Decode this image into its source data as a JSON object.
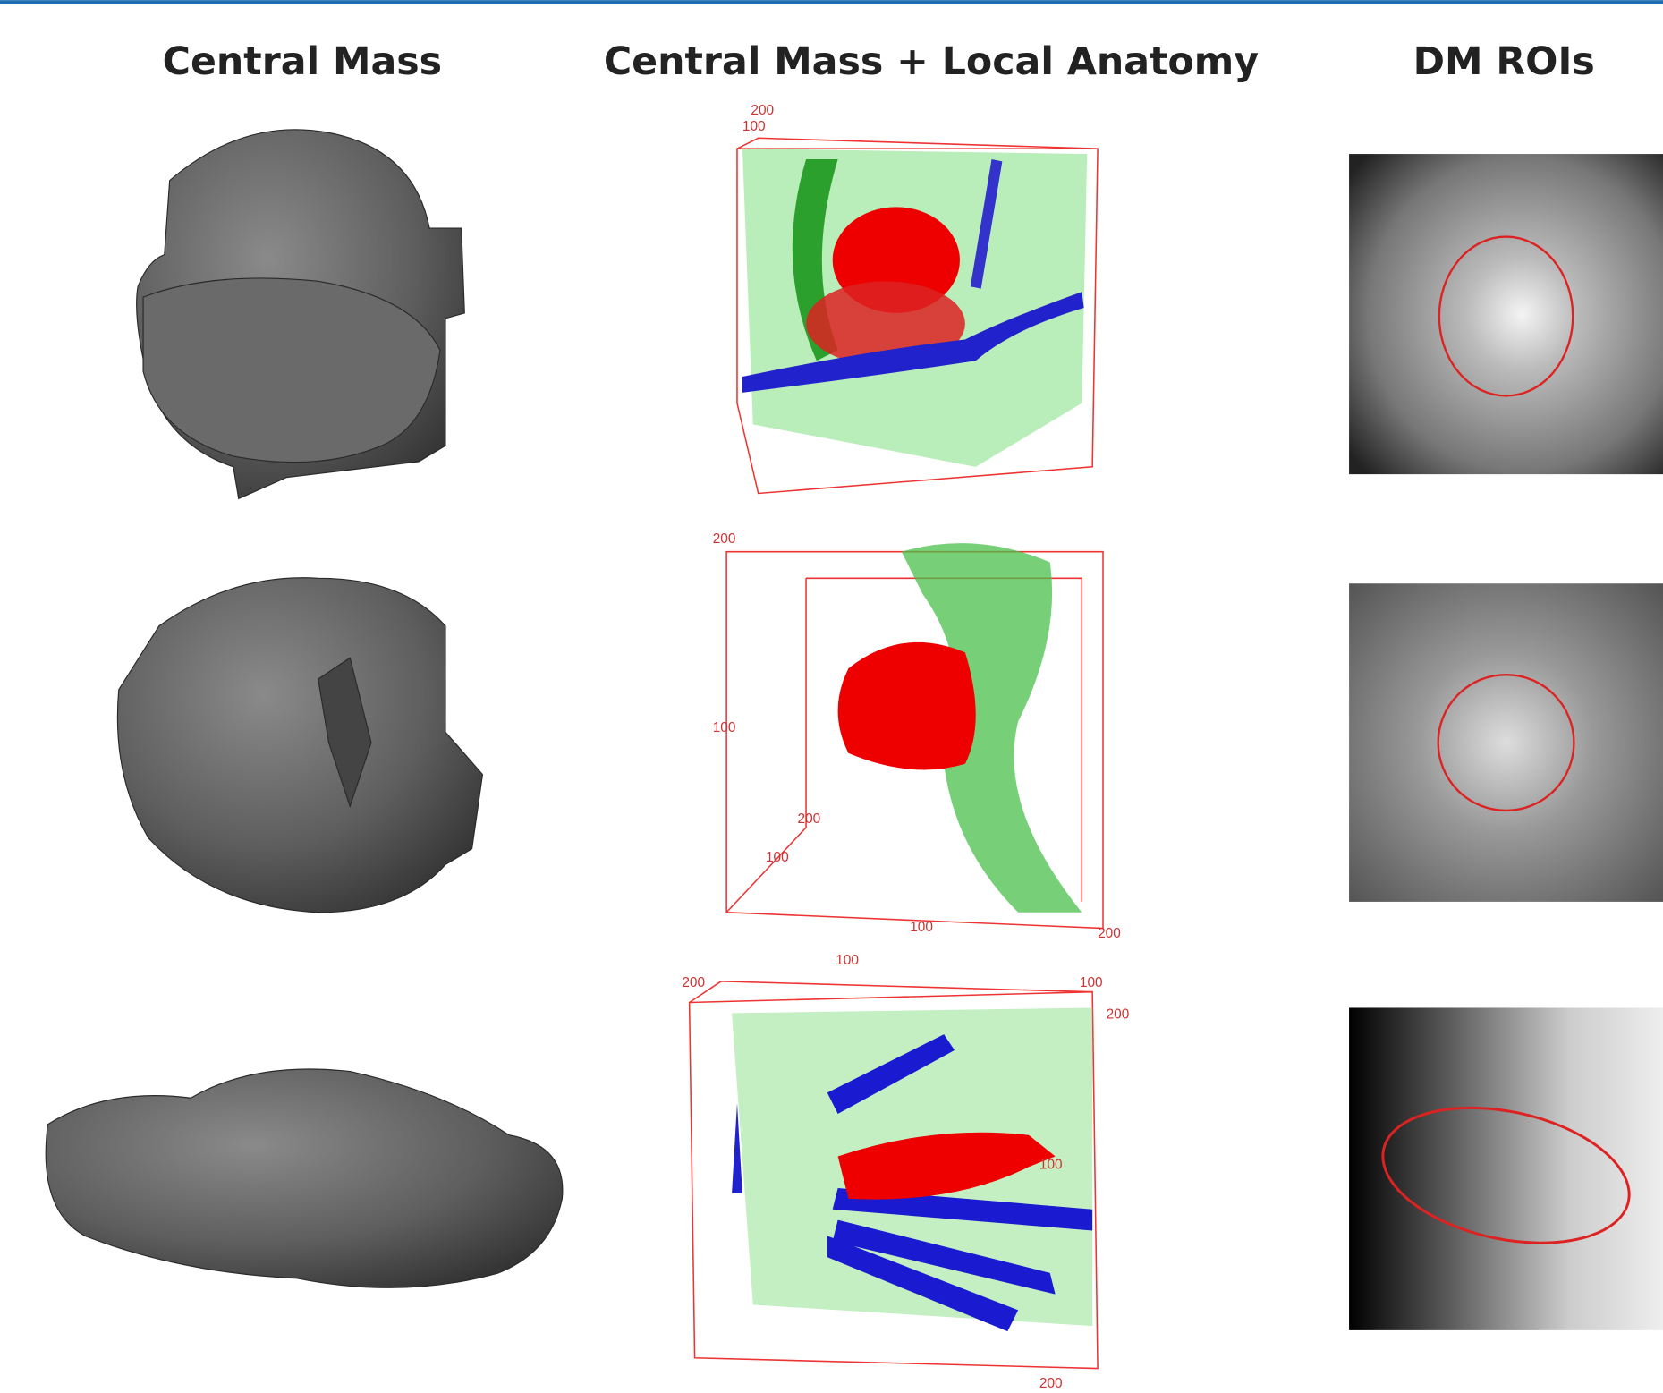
{
  "header": {
    "columns": [
      "Central Mass",
      "Central Mass + Local Anatomy",
      "DM ROIs"
    ]
  },
  "rows": [
    {
      "axis_labels": [
        "200",
        "100"
      ]
    },
    {
      "axis_labels": [
        "200",
        "100",
        "200",
        "100",
        "100",
        "200"
      ]
    },
    {
      "axis_labels": [
        "200",
        "100",
        "100",
        "200",
        "100",
        "200"
      ]
    }
  ]
}
